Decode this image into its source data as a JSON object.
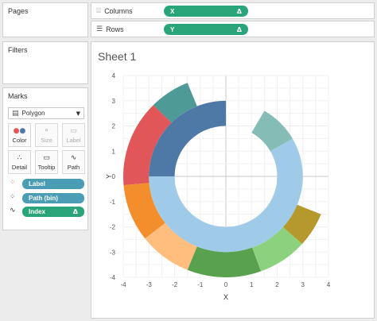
{
  "sidebar": {
    "pages_title": "Pages",
    "filters_title": "Filters",
    "marks_title": "Marks",
    "mark_type": "Polygon",
    "cards": [
      {
        "label": "Color",
        "icon": "color-palette-icon",
        "enabled": true
      },
      {
        "label": "Size",
        "icon": "size-icon",
        "enabled": false
      },
      {
        "label": "Label",
        "icon": "label-icon",
        "enabled": false
      },
      {
        "label": "Detail",
        "icon": "detail-icon",
        "enabled": true
      },
      {
        "label": "Tooltip",
        "icon": "tooltip-icon",
        "enabled": true
      },
      {
        "label": "Path",
        "icon": "path-icon",
        "enabled": true
      }
    ],
    "mark_fields": [
      {
        "label": "Label",
        "color": "#4a9db5",
        "icon": "color-dots-icon",
        "delta": ""
      },
      {
        "label": "Path (bin)",
        "color": "#4a9db5",
        "icon": "path-dots-icon",
        "delta": ""
      },
      {
        "label": "Index",
        "color": "#2aa57a",
        "icon": "path-line-icon",
        "delta": "Δ"
      }
    ]
  },
  "shelves": {
    "columns_label": "Columns",
    "rows_label": "Rows",
    "columns_pill": "X",
    "rows_pill": "Y",
    "delta": "Δ"
  },
  "sheet": {
    "title": "Sheet 1"
  },
  "chart_data": {
    "type": "radial-bar",
    "xlabel": "X",
    "ylabel": "Y",
    "xlim": [
      -4,
      4
    ],
    "ylim": [
      -4,
      4
    ],
    "xticks": [
      "-4",
      "-3",
      "-2",
      "-1",
      "0",
      "1",
      "2",
      "3",
      "4"
    ],
    "yticks": [
      "4",
      "3",
      "2",
      "1",
      "0",
      "-1",
      "-2",
      "-3",
      "-4"
    ],
    "grid": true,
    "rings": [
      {
        "inner_radius": 3.0,
        "outer_radius": 4.0,
        "segments": [
          {
            "start_deg": 22,
            "end_deg": 45,
            "color": "#4e9a96"
          },
          {
            "start_deg": 45,
            "end_deg": 95,
            "color": "#e15759"
          },
          {
            "start_deg": 95,
            "end_deg": 128,
            "color": "#f28e2b"
          },
          {
            "start_deg": 128,
            "end_deg": 158,
            "color": "#ffbe7d"
          },
          {
            "start_deg": 158,
            "end_deg": 200,
            "color": "#59a14f"
          },
          {
            "start_deg": 200,
            "end_deg": 228,
            "color": "#8cd17d"
          },
          {
            "start_deg": 228,
            "end_deg": 248,
            "color": "#b6992d"
          }
        ]
      },
      {
        "inner_radius": 2.0,
        "outer_radius": 3.0,
        "segments": [
          {
            "start_deg": 0,
            "end_deg": 90,
            "color": "#4e79a7"
          },
          {
            "start_deg": 90,
            "end_deg": 300,
            "color": "#a0cbe8"
          },
          {
            "start_deg": 300,
            "end_deg": 330,
            "color": "#86bcb6"
          }
        ]
      }
    ]
  }
}
